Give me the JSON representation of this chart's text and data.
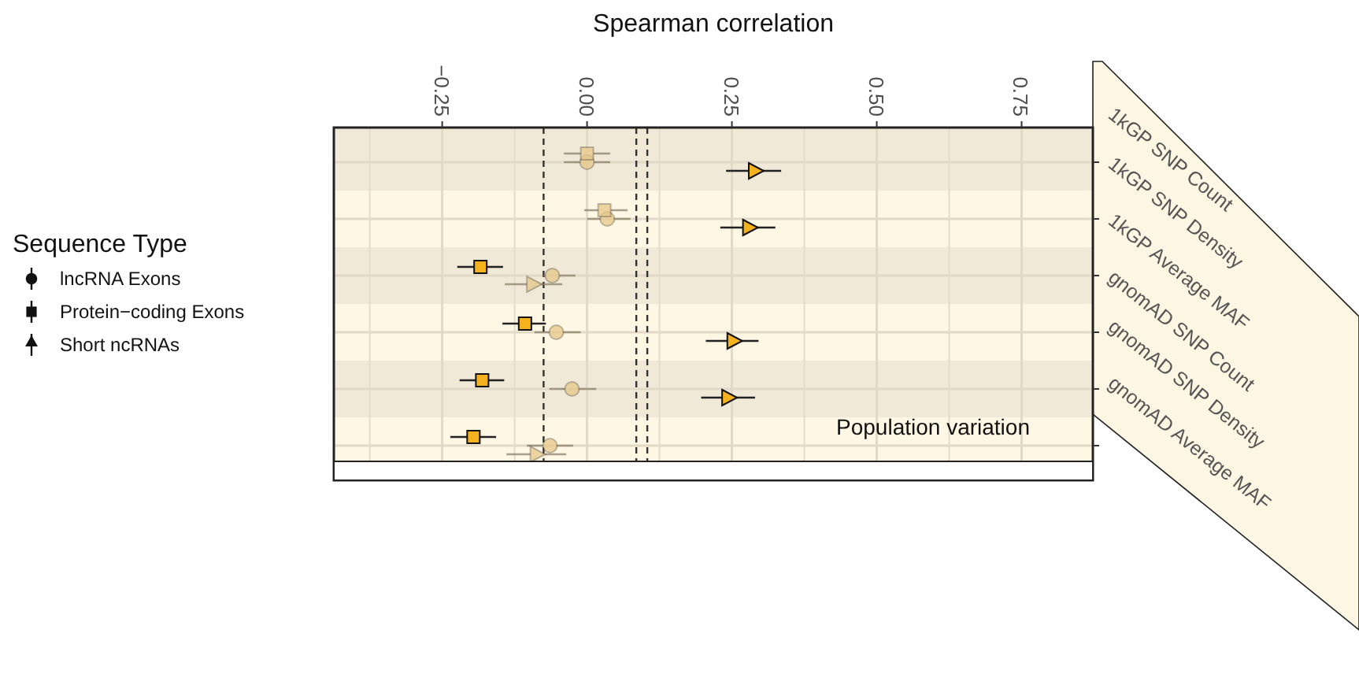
{
  "chart_data": {
    "type": "scatter",
    "orientation": "horizontal",
    "xlabel": "Spearman correlation",
    "legend_title": "Sequence Type",
    "legend": "left",
    "grid": true,
    "categories": [
      "1kGP SNP Count",
      "1kGP SNP Density",
      "1kGP Average MAF",
      "gnomAD SNP Count",
      "gnomAD SNP Density",
      "gnomAD Average MAF"
    ],
    "xlim": [
      -0.437,
      0.873
    ],
    "xticks": [
      {
        "value": -0.25,
        "label": "−0.25"
      },
      {
        "value": 0,
        "label": "0.00"
      },
      {
        "value": 0.25,
        "label": "0.25"
      },
      {
        "value": 0.5,
        "label": "0.50"
      },
      {
        "value": 0.75,
        "label": "0.75"
      }
    ],
    "series": [
      {
        "name": "lncRNA Exons",
        "marker": "circle",
        "colors": [
          "#e6c88a",
          "#e6c88a",
          "#e6c88a",
          "#e6c88a",
          "#e6c88a",
          "#e6c88a"
        ],
        "values": [
          0.0,
          0.035,
          -0.06,
          -0.053,
          -0.026,
          -0.064
        ],
        "errors": [
          [
            -0.04,
            0.04
          ],
          [
            0.0,
            0.075
          ],
          [
            -0.075,
            -0.02
          ],
          [
            -0.091,
            -0.011
          ],
          [
            -0.065,
            0.016
          ],
          [
            -0.104,
            -0.024
          ]
        ]
      },
      {
        "name": "Protein−coding Exons",
        "marker": "square",
        "colors": [
          "#e6c88a",
          "#e6c88a",
          "#f5b21f",
          "#f5b21f",
          "#f5b21f",
          "#f5b21f"
        ],
        "values": [
          0.0,
          0.03,
          -0.184,
          -0.107,
          -0.181,
          -0.196
        ],
        "errors": [
          [
            -0.04,
            0.04
          ],
          [
            -0.005,
            0.07
          ],
          [
            -0.224,
            -0.145
          ],
          [
            -0.146,
            -0.071
          ],
          [
            -0.22,
            -0.143
          ],
          [
            -0.236,
            -0.157
          ]
        ]
      },
      {
        "name": "Short ncRNAs",
        "marker": "triangle",
        "colors": [
          "#f5b21f",
          "#f5b21f",
          "#e6c88a",
          "#f5b21f",
          "#f5b21f",
          "#e6c88a"
        ],
        "values": [
          0.29,
          0.28,
          -0.093,
          0.253,
          0.244,
          -0.087
        ],
        "errors": [
          [
            0.24,
            0.335
          ],
          [
            0.23,
            0.325
          ],
          [
            -0.142,
            -0.043
          ],
          [
            0.205,
            0.296
          ],
          [
            0.197,
            0.29
          ],
          [
            -0.139,
            -0.036
          ]
        ]
      }
    ],
    "ref_lines": [
      {
        "axis": "x",
        "value": -0.075,
        "line_style": "dashed"
      },
      {
        "axis": "x",
        "value": 0.085,
        "line_style": "dashed"
      },
      {
        "axis": "x",
        "value": 0.104,
        "line_style": "dashed"
      }
    ],
    "annotations": [
      "Population variation"
    ]
  }
}
